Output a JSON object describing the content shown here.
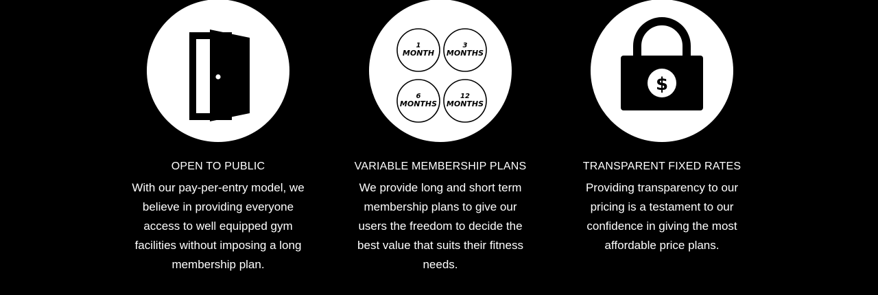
{
  "colors": {
    "background": "#000000",
    "circle": "#ffffff",
    "icon": "#000000",
    "text": "#ffffff"
  },
  "features": [
    {
      "icon": "open-door-icon",
      "title": "OPEN TO PUBLIC",
      "description": "With our pay-per-entry model, we believe in providing everyone access to well equipped gym facilities without imposing a long membership plan."
    },
    {
      "icon": "membership-plans-icon",
      "plans": [
        {
          "number": "1",
          "unit": "MONTH"
        },
        {
          "number": "3",
          "unit": "MONTHS"
        },
        {
          "number": "6",
          "unit": "MONTHS"
        },
        {
          "number": "12",
          "unit": "MONTHS"
        }
      ],
      "title": "VARIABLE MEMBERSHIP PLANS",
      "description": "We provide long and short term membership plans to give our users the freedom to decide the best value that suits their fitness needs."
    },
    {
      "icon": "padlock-dollar-icon",
      "symbol": "$",
      "title": "TRANSPARENT FIXED RATES",
      "description": "Providing transparency to our pricing is a testament to our confidence in giving the most affordable price plans."
    }
  ]
}
